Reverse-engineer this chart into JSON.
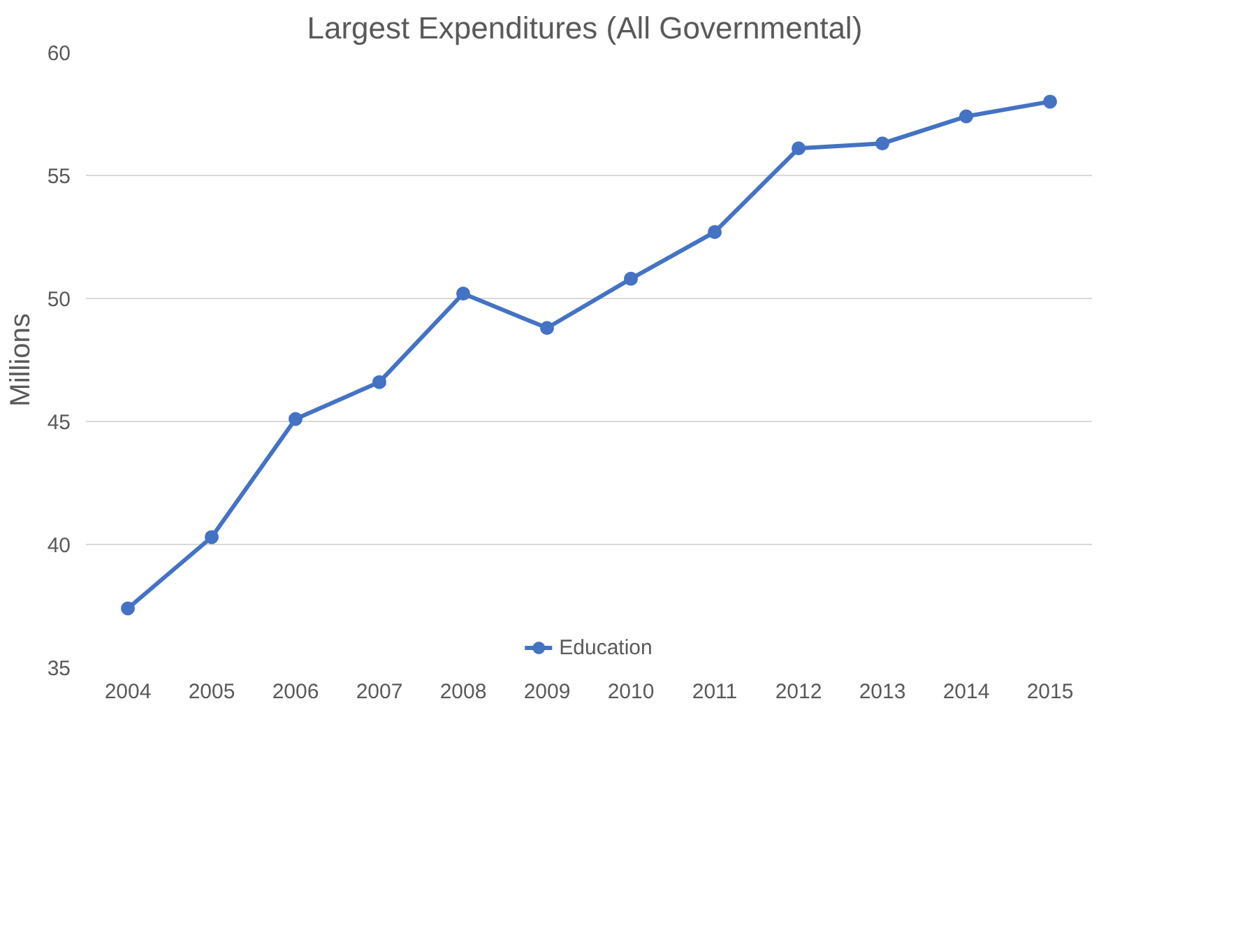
{
  "chart_data": {
    "type": "line",
    "title": "Largest Expenditures  (All Governmental)",
    "ylabel": "Millions",
    "categories": [
      "2004",
      "2005",
      "2006",
      "2007",
      "2008",
      "2009",
      "2010",
      "2011",
      "2012",
      "2013",
      "2014",
      "2015"
    ],
    "series": [
      {
        "name": "Education",
        "color": "#4472c4",
        "values": [
          37.4,
          40.3,
          45.1,
          46.6,
          50.2,
          48.8,
          50.8,
          52.7,
          56.1,
          56.3,
          57.4,
          58.0
        ]
      }
    ],
    "ylim": [
      35,
      60
    ],
    "yticks": [
      35,
      40,
      45,
      50,
      55,
      60
    ],
    "grid": "y",
    "legend": "bottom",
    "marker": "circle",
    "line_style": "solid"
  }
}
